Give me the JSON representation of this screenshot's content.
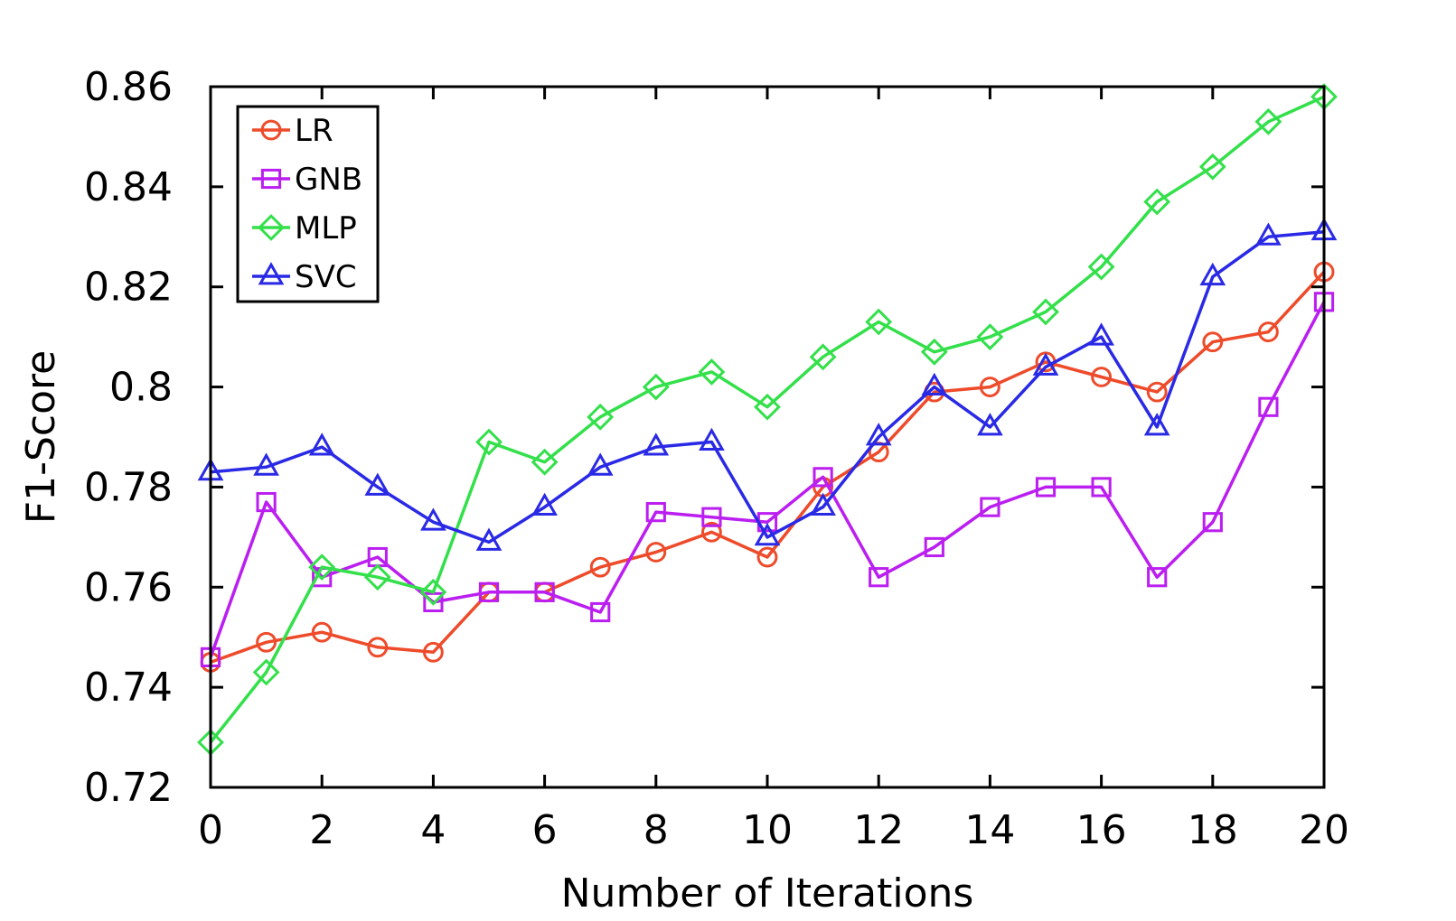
{
  "chart_data": {
    "type": "line",
    "xlabel": "Number of Iterations",
    "ylabel": "F1-Score",
    "xlim": [
      0,
      20
    ],
    "ylim": [
      0.72,
      0.86
    ],
    "x_ticks": [
      0,
      2,
      4,
      6,
      8,
      10,
      12,
      14,
      16,
      18,
      20
    ],
    "x_tick_labels": [
      "0",
      "2",
      "4",
      "6",
      "8",
      "10",
      "12",
      "14",
      "16",
      "18",
      "20"
    ],
    "y_ticks": [
      0.72,
      0.74,
      0.76,
      0.78,
      0.8,
      0.82,
      0.84,
      0.86
    ],
    "y_tick_labels": [
      "0.72",
      "0.74",
      "0.76",
      "0.78",
      "0.8",
      "0.82",
      "0.84",
      "0.86"
    ],
    "grid": false,
    "legend_position": "top-left",
    "x": [
      0,
      1,
      2,
      3,
      4,
      5,
      6,
      7,
      8,
      9,
      10,
      11,
      12,
      13,
      14,
      15,
      16,
      17,
      18,
      19,
      20
    ],
    "series": [
      {
        "name": "LR",
        "color": "#ee4b2b",
        "marker": "circle",
        "values": [
          0.745,
          0.749,
          0.751,
          0.748,
          0.747,
          0.759,
          0.759,
          0.764,
          0.767,
          0.771,
          0.766,
          0.78,
          0.787,
          0.799,
          0.8,
          0.805,
          0.802,
          0.799,
          0.809,
          0.811,
          0.823
        ]
      },
      {
        "name": "GNB",
        "color": "#bb1ef0",
        "marker": "square",
        "values": [
          0.746,
          0.777,
          0.762,
          0.766,
          0.757,
          0.759,
          0.759,
          0.755,
          0.775,
          0.774,
          0.773,
          0.782,
          0.762,
          0.768,
          0.776,
          0.78,
          0.78,
          0.762,
          0.773,
          0.796,
          0.817
        ]
      },
      {
        "name": "MLP",
        "color": "#33e04a",
        "marker": "diamond",
        "values": [
          0.729,
          0.743,
          0.764,
          0.762,
          0.759,
          0.789,
          0.785,
          0.794,
          0.8,
          0.803,
          0.796,
          0.806,
          0.813,
          0.807,
          0.81,
          0.815,
          0.824,
          0.837,
          0.844,
          0.853,
          0.858
        ]
      },
      {
        "name": "SVC",
        "color": "#2929e6",
        "marker": "triangle",
        "values": [
          0.783,
          0.784,
          0.788,
          0.78,
          0.773,
          0.769,
          0.776,
          0.784,
          0.788,
          0.789,
          0.77,
          0.776,
          0.79,
          0.8,
          0.792,
          0.804,
          0.81,
          0.792,
          0.822,
          0.83,
          0.831
        ]
      }
    ]
  }
}
